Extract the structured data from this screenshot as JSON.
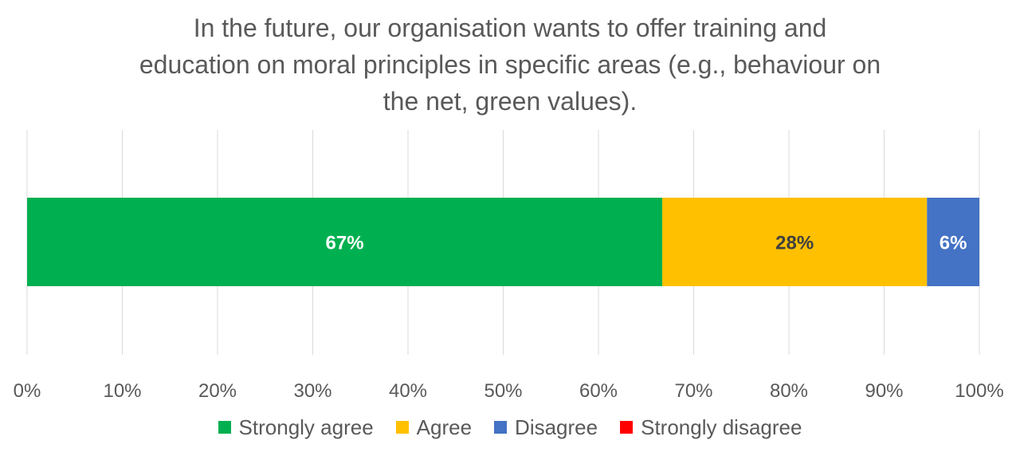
{
  "chart_data": {
    "type": "bar",
    "orientation": "horizontal",
    "stacked": true,
    "title_lines": [
      "In the future, our organisation wants to offer training and",
      "education on moral principles in specific areas (e.g., behaviour on",
      "the net, green values)."
    ],
    "xlim": [
      0,
      100
    ],
    "x_ticks": [
      "0%",
      "10%",
      "20%",
      "30%",
      "40%",
      "50%",
      "60%",
      "70%",
      "80%",
      "90%",
      "100%"
    ],
    "grid": true,
    "legend_position": "bottom",
    "series": [
      {
        "name": "Strongly agree",
        "value": 66.7,
        "label": "67%",
        "color": "#00b050",
        "label_color": "#ffffff"
      },
      {
        "name": "Agree",
        "value": 27.8,
        "label": "28%",
        "color": "#ffc000",
        "label_color": "#404040"
      },
      {
        "name": "Disagree",
        "value": 5.5,
        "label": "6%",
        "color": "#4472c4",
        "label_color": "#ffffff"
      },
      {
        "name": "Strongly disagree",
        "value": 0,
        "label": "",
        "color": "#ff0000",
        "label_color": "#ffffff"
      }
    ]
  }
}
